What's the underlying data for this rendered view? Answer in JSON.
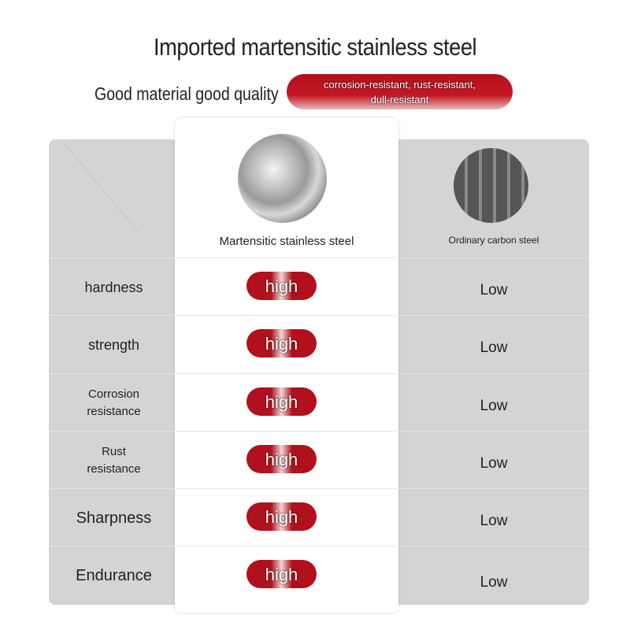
{
  "title": "Imported martensitic stainless steel",
  "subtitle": "Good material good quality",
  "badge_line1": "corrosion-resistant, rust-resistant,",
  "badge_line2": "dull-resistant",
  "columns": {
    "a": "Martensitic stainless steel",
    "b": "Ordinary carbon steel"
  },
  "rows": [
    {
      "label": "hardness",
      "a": "high",
      "b": "Low"
    },
    {
      "label": "strength",
      "a": "high",
      "b": "Low"
    },
    {
      "label": "Corrosion resistance",
      "a": "high",
      "b": "Low"
    },
    {
      "label": "Rust resistance",
      "a": "high",
      "b": "Low"
    },
    {
      "label": "Sharpness",
      "a": "high",
      "b": "Low"
    },
    {
      "label": "Endurance",
      "a": "high",
      "b": "Low"
    }
  ],
  "colors": {
    "accent": "#b0111c",
    "panel": "#d4d4d4"
  }
}
